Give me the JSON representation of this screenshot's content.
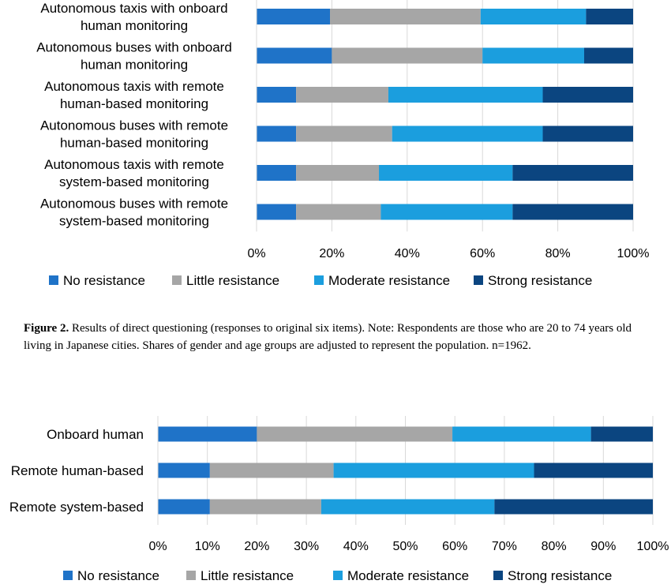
{
  "colors": {
    "No resistance": "#1f73c8",
    "Little resistance": "#a6a6a6",
    "Moderate resistance": "#1b9ede",
    "Strong resistance": "#0b4580"
  },
  "caption": {
    "label": "Figure 2.",
    "text": " Results of direct questioning (responses to original six items). Note: Respondents are those who are 20 to 74 years old living in Japanese cities. Shares of gender and age groups are adjusted to represent the population. n=1962."
  },
  "chart_data": [
    {
      "type": "bar",
      "orientation": "horizontal",
      "stacked": true,
      "categories": [
        [
          "Autonomous taxis with onboard",
          "human monitoring"
        ],
        [
          "Autonomous buses with onboard",
          "human monitoring"
        ],
        [
          "Autonomous taxis with remote",
          "human-based monitoring"
        ],
        [
          "Autonomous buses with remote",
          "human-based monitoring"
        ],
        [
          "Autonomous taxis with remote",
          "system-based monitoring"
        ],
        [
          "Autonomous buses with remote",
          "system-based monitoring"
        ]
      ],
      "series": [
        {
          "name": "No resistance",
          "values": [
            19.5,
            20,
            10.5,
            10.5,
            10.5,
            10.5
          ]
        },
        {
          "name": "Little resistance",
          "values": [
            40,
            40,
            24.5,
            25.5,
            22,
            22.5
          ]
        },
        {
          "name": "Moderate resistance",
          "values": [
            28,
            27,
            41,
            40,
            35.5,
            35
          ]
        },
        {
          "name": "Strong resistance",
          "values": [
            12.5,
            13,
            24,
            24,
            32,
            32
          ]
        }
      ],
      "xlim": [
        0,
        100
      ],
      "x_ticks": [
        "0%",
        "20%",
        "40%",
        "60%",
        "80%",
        "100%"
      ],
      "grid": true,
      "legend": "bottom"
    },
    {
      "type": "bar",
      "orientation": "horizontal",
      "stacked": true,
      "categories": [
        [
          "Onboard human"
        ],
        [
          "Remote human-based"
        ],
        [
          "Remote system-based"
        ]
      ],
      "series": [
        {
          "name": "No resistance",
          "values": [
            20,
            10.5,
            10.5
          ]
        },
        {
          "name": "Little resistance",
          "values": [
            39.5,
            25,
            22.5
          ]
        },
        {
          "name": "Moderate resistance",
          "values": [
            28,
            40.5,
            35
          ]
        },
        {
          "name": "Strong resistance",
          "values": [
            12.5,
            24,
            32
          ]
        }
      ],
      "xlim": [
        0,
        100
      ],
      "x_ticks": [
        "0%",
        "10%",
        "20%",
        "30%",
        "40%",
        "50%",
        "60%",
        "70%",
        "80%",
        "90%",
        "100%"
      ],
      "grid": true,
      "legend": "bottom"
    }
  ]
}
